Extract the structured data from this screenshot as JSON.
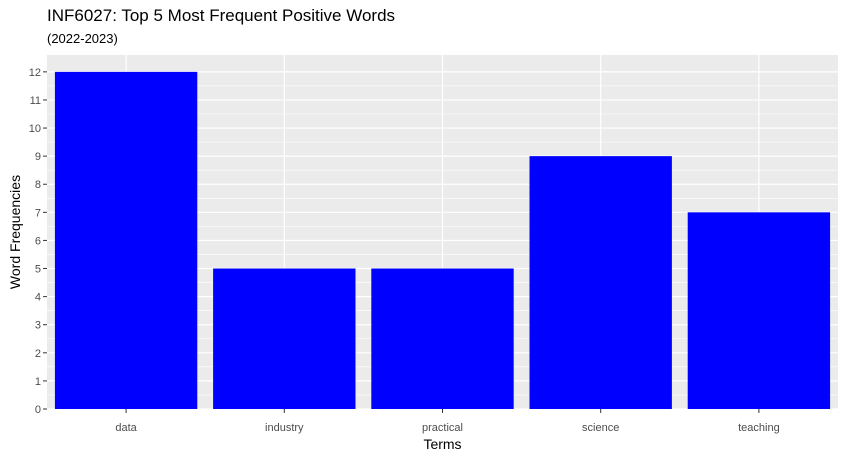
{
  "chart_data": {
    "type": "bar",
    "title": "INF6027: Top 5 Most Frequent Positive Words",
    "subtitle": "(2022-2023)",
    "xlabel": "Terms",
    "ylabel": "Word Frequencies",
    "categories": [
      "data",
      "industry",
      "practical",
      "science",
      "teaching"
    ],
    "values": [
      12,
      5,
      5,
      9,
      7
    ],
    "yticks": [
      0,
      1,
      2,
      3,
      4,
      5,
      6,
      7,
      8,
      9,
      10,
      11,
      12
    ],
    "ylim": [
      0,
      12.6
    ],
    "grid": true,
    "colors": {
      "bar": "#0000FF",
      "panel": "#EBEBEB",
      "grid": "#FFFFFF"
    }
  }
}
